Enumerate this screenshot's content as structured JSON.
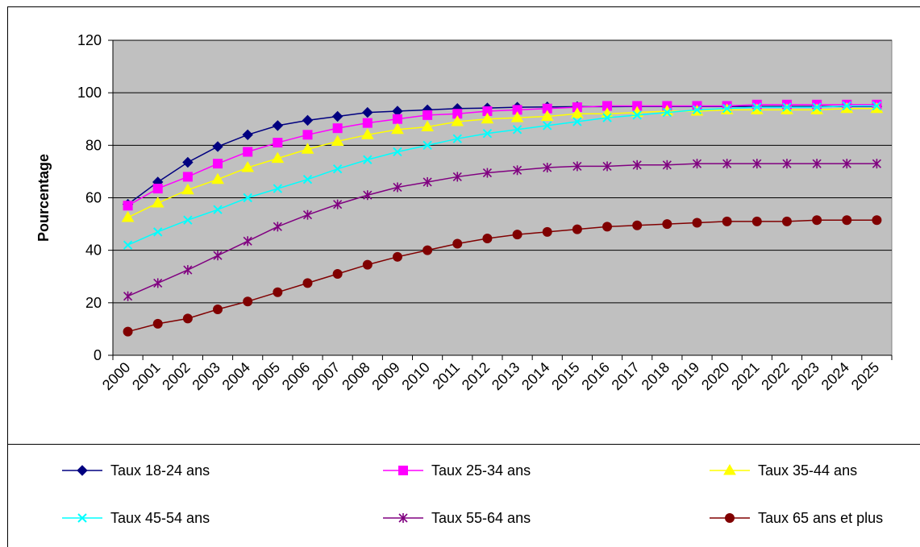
{
  "chart_data": {
    "type": "line",
    "title": "",
    "xlabel": "",
    "ylabel": "Pourcentage",
    "ylim": [
      0,
      120
    ],
    "yticks": [
      "0",
      "20",
      "40",
      "60",
      "80",
      "100",
      "120"
    ],
    "grid": "horizontal",
    "plot_background": "#c0c0c0",
    "legend_position": "bottom",
    "categories": [
      "2000",
      "2001",
      "2002",
      "2003",
      "2004",
      "2005",
      "2006",
      "2007",
      "2008",
      "2009",
      "2010",
      "2011",
      "2012",
      "2013",
      "2014",
      "2015",
      "2016",
      "2017",
      "2018",
      "2019",
      "2020",
      "2021",
      "2022",
      "2023",
      "2024",
      "2025"
    ],
    "series": [
      {
        "name": "Taux 18-24 ans",
        "color": "#000080",
        "marker": "diamond",
        "values": [
          57.5,
          66,
          73.5,
          79.5,
          84,
          87.5,
          89.5,
          91,
          92.5,
          93,
          93.5,
          94,
          94.2,
          94.5,
          94.6,
          94.7,
          94.7,
          94.8,
          94.8,
          94.8,
          94.8,
          94.8,
          94.8,
          94.8,
          94.8,
          94.8
        ]
      },
      {
        "name": "Taux 25-34 ans",
        "color": "#ff00ff",
        "marker": "square",
        "values": [
          57,
          63.5,
          68,
          73,
          77.5,
          81,
          84,
          86.5,
          88.5,
          90,
          91.5,
          92,
          93,
          93.5,
          94,
          94.5,
          95,
          95,
          95,
          95,
          95,
          95.5,
          95.5,
          95.5,
          95.5,
          95.5
        ]
      },
      {
        "name": "Taux 35-44 ans",
        "color": "#ffff00",
        "marker": "triangle",
        "values": [
          52.5,
          58,
          63,
          67,
          71.5,
          75,
          78.5,
          81.5,
          84,
          86,
          87,
          89,
          90,
          90.5,
          91,
          92,
          92,
          92.5,
          93,
          93,
          93.5,
          93.5,
          93.5,
          93.5,
          94,
          94
        ]
      },
      {
        "name": "Taux 45-54 ans",
        "color": "#00ffff",
        "marker": "x",
        "values": [
          42,
          47,
          51.5,
          55.5,
          60,
          63.5,
          67,
          71,
          74.5,
          77.5,
          80,
          82.5,
          84.5,
          86,
          87.5,
          89,
          90.5,
          91.5,
          92.5,
          93.5,
          94,
          94.5,
          94.5,
          94.5,
          95,
          95
        ]
      },
      {
        "name": "Taux 55-64 ans",
        "color": "#800080",
        "marker": "star",
        "values": [
          22.5,
          27.5,
          32.5,
          38,
          43.5,
          49,
          53.5,
          57.5,
          61,
          64,
          66,
          68,
          69.5,
          70.5,
          71.5,
          72,
          72,
          72.5,
          72.5,
          73,
          73,
          73,
          73,
          73,
          73,
          73
        ]
      },
      {
        "name": "Taux 65 ans et plus",
        "color": "#800000",
        "marker": "circle",
        "values": [
          9,
          12,
          14,
          17.5,
          20.5,
          24,
          27.5,
          31,
          34.5,
          37.5,
          40,
          42.5,
          44.5,
          46,
          47,
          48,
          49,
          49.5,
          50,
          50.5,
          51,
          51,
          51,
          51.5,
          51.5,
          51.5
        ]
      }
    ]
  }
}
